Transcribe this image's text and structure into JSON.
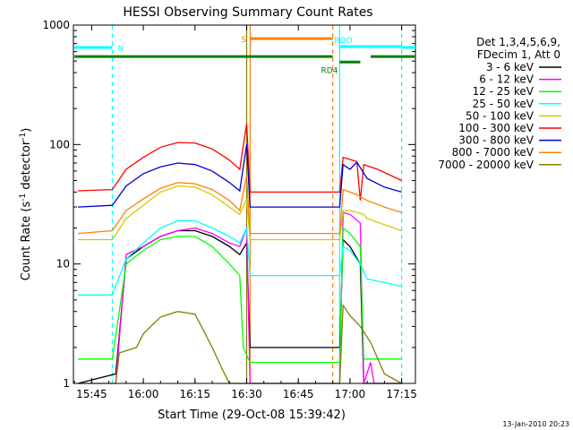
{
  "chart_data": {
    "type": "line",
    "title": "HESSI Observing Summary Count Rates",
    "xlabel": "Start Time (29-Oct-08 15:39:42)",
    "ylabel_main": "Count Rate (s",
    "ylabel_sup1": "-1",
    "ylabel_mid": " detector",
    "ylabel_sup2": "-1",
    "ylabel_end": ")",
    "y_scale": "log",
    "xlim": [
      "15:39:42",
      "17:19:00"
    ],
    "ylim": [
      1,
      1000
    ],
    "x_ticks": [
      {
        "label": "15:45",
        "t": "15:45"
      },
      {
        "label": "16:00",
        "t": "16:00"
      },
      {
        "label": "16:15",
        "t": "16:15"
      },
      {
        "label": "16:30",
        "t": "16:30"
      },
      {
        "label": "16:45",
        "t": "16:45"
      },
      {
        "label": "17:00",
        "t": "17:00"
      },
      {
        "label": "17:15",
        "t": "17:15"
      }
    ],
    "y_ticks": [
      {
        "label": "1",
        "v": 1
      },
      {
        "label": "10",
        "v": 10
      },
      {
        "label": "100",
        "v": 100
      },
      {
        "label": "1000",
        "v": 1000
      }
    ],
    "legend_header": [
      "Det 1,3,4,5,6,9,",
      "FDecim 1, Att 0"
    ],
    "legend_position": "right",
    "series": [
      {
        "name": "3 - 6 keV",
        "color": "#000000",
        "points": [
          [
            "15:41",
            1.0
          ],
          [
            "15:52",
            1.2
          ],
          [
            "15:55",
            11
          ],
          [
            "16:00",
            14
          ],
          [
            "16:05",
            17
          ],
          [
            "16:10",
            19
          ],
          [
            "16:15",
            19
          ],
          [
            "16:20",
            17
          ],
          [
            "16:25",
            14
          ],
          [
            "16:28",
            12
          ],
          [
            "16:30",
            15
          ],
          [
            "16:31",
            2.0
          ],
          [
            "16:57",
            2.0
          ],
          [
            "16:58",
            16
          ],
          [
            "17:00",
            14
          ],
          [
            "17:03",
            10
          ],
          [
            "17:04",
            1.0
          ],
          [
            "17:15",
            1.0
          ]
        ]
      },
      {
        "name": "6 - 12 keV",
        "color": "#ff00ff",
        "points": [
          [
            "15:52",
            1.0
          ],
          [
            "15:55",
            12
          ],
          [
            "16:00",
            14
          ],
          [
            "16:05",
            17
          ],
          [
            "16:10",
            19
          ],
          [
            "16:15",
            20
          ],
          [
            "16:20",
            18
          ],
          [
            "16:25",
            15
          ],
          [
            "16:28",
            14
          ],
          [
            "16:30",
            20
          ],
          [
            "16:31",
            1.0
          ],
          [
            "16:57",
            1.0
          ],
          [
            "16:58",
            27
          ],
          [
            "17:00",
            26
          ],
          [
            "17:03",
            22
          ],
          [
            "17:04",
            1.0
          ],
          [
            "17:06",
            1.5
          ],
          [
            "17:07",
            1.0
          ],
          [
            "17:15",
            1.0
          ]
        ]
      },
      {
        "name": "12 - 25 keV",
        "color": "#00ff00",
        "points": [
          [
            "15:41",
            1.6
          ],
          [
            "15:51",
            1.6
          ],
          [
            "15:55",
            10
          ],
          [
            "16:00",
            13
          ],
          [
            "16:05",
            16
          ],
          [
            "16:10",
            17
          ],
          [
            "16:15",
            17
          ],
          [
            "16:20",
            14
          ],
          [
            "16:25",
            10
          ],
          [
            "16:28",
            8
          ],
          [
            "16:29",
            2.0
          ],
          [
            "16:31",
            1.5
          ],
          [
            "16:57",
            1.5
          ],
          [
            "16:58",
            20
          ],
          [
            "17:00",
            18
          ],
          [
            "17:03",
            14
          ],
          [
            "17:04",
            1.6
          ],
          [
            "17:15",
            1.6
          ]
        ]
      },
      {
        "name": "25 - 50 keV",
        "color": "#00ffff",
        "points": [
          [
            "15:41",
            5.5
          ],
          [
            "15:51",
            5.5
          ],
          [
            "15:55",
            11
          ],
          [
            "16:00",
            15
          ],
          [
            "16:05",
            20
          ],
          [
            "16:10",
            23
          ],
          [
            "16:15",
            23
          ],
          [
            "16:20",
            20
          ],
          [
            "16:25",
            17
          ],
          [
            "16:28",
            15
          ],
          [
            "16:30",
            20
          ],
          [
            "16:31",
            8.0
          ],
          [
            "16:57",
            8.0
          ],
          [
            "16:58",
            14
          ],
          [
            "17:00",
            13
          ],
          [
            "17:03",
            10
          ],
          [
            "17:05",
            7.5
          ],
          [
            "17:15",
            6.5
          ]
        ]
      },
      {
        "name": "50 - 100 keV",
        "color": "#cccc00",
        "points": [
          [
            "15:41",
            16
          ],
          [
            "15:51",
            16
          ],
          [
            "15:55",
            24
          ],
          [
            "16:00",
            31
          ],
          [
            "16:05",
            40
          ],
          [
            "16:10",
            45
          ],
          [
            "16:15",
            44
          ],
          [
            "16:20",
            38
          ],
          [
            "16:25",
            30
          ],
          [
            "16:28",
            26
          ],
          [
            "16:30",
            35
          ],
          [
            "16:31",
            16
          ],
          [
            "16:57",
            16
          ],
          [
            "16:58",
            28
          ],
          [
            "17:00",
            28
          ],
          [
            "17:04",
            26
          ],
          [
            "17:05",
            24
          ],
          [
            "17:15",
            19
          ]
        ]
      },
      {
        "name": "100 - 300 keV",
        "color": "#ff0000",
        "points": [
          [
            "15:41",
            41
          ],
          [
            "15:51",
            42
          ],
          [
            "15:55",
            62
          ],
          [
            "16:00",
            78
          ],
          [
            "16:05",
            95
          ],
          [
            "16:10",
            104
          ],
          [
            "16:15",
            103
          ],
          [
            "16:20",
            92
          ],
          [
            "16:25",
            74
          ],
          [
            "16:28",
            62
          ],
          [
            "16:30",
            150
          ],
          [
            "16:31",
            40
          ],
          [
            "16:57",
            40
          ],
          [
            "16:58",
            78
          ],
          [
            "17:00",
            75
          ],
          [
            "17:02",
            72
          ],
          [
            "17:03",
            34
          ],
          [
            "17:04",
            68
          ],
          [
            "17:08",
            62
          ],
          [
            "17:15",
            50
          ]
        ]
      },
      {
        "name": "300 - 800 keV",
        "color": "#0000cc",
        "points": [
          [
            "15:41",
            30
          ],
          [
            "15:51",
            31
          ],
          [
            "15:55",
            45
          ],
          [
            "16:00",
            57
          ],
          [
            "16:05",
            65
          ],
          [
            "16:10",
            70
          ],
          [
            "16:15",
            68
          ],
          [
            "16:20",
            60
          ],
          [
            "16:25",
            48
          ],
          [
            "16:28",
            41
          ],
          [
            "16:30",
            100
          ],
          [
            "16:31",
            30
          ],
          [
            "16:57",
            30
          ],
          [
            "16:58",
            68
          ],
          [
            "17:00",
            62
          ],
          [
            "17:02",
            71
          ],
          [
            "17:05",
            52
          ],
          [
            "17:10",
            44
          ],
          [
            "17:15",
            40
          ]
        ]
      },
      {
        "name": "800 - 7000 keV",
        "color": "#ff8000",
        "points": [
          [
            "15:41",
            18
          ],
          [
            "15:51",
            19
          ],
          [
            "15:55",
            28
          ],
          [
            "16:00",
            35
          ],
          [
            "16:05",
            43
          ],
          [
            "16:10",
            48
          ],
          [
            "16:15",
            47
          ],
          [
            "16:20",
            42
          ],
          [
            "16:25",
            34
          ],
          [
            "16:28",
            28
          ],
          [
            "16:30",
            55
          ],
          [
            "16:31",
            18
          ],
          [
            "16:57",
            18
          ],
          [
            "16:58",
            42
          ],
          [
            "17:00",
            40
          ],
          [
            "17:02",
            38
          ],
          [
            "17:05",
            34
          ],
          [
            "17:10",
            30
          ],
          [
            "17:15",
            27
          ]
        ]
      },
      {
        "name": "7000 - 20000 keV",
        "color": "#808000",
        "points": [
          [
            "15:41",
            1.0
          ],
          [
            "15:52",
            1.0
          ],
          [
            "15:53",
            1.8
          ],
          [
            "15:58",
            2.0
          ],
          [
            "16:00",
            2.6
          ],
          [
            "16:05",
            3.6
          ],
          [
            "16:10",
            4.0
          ],
          [
            "16:15",
            3.8
          ],
          [
            "16:18",
            2.6
          ],
          [
            "16:20",
            2.0
          ],
          [
            "16:23",
            1.3
          ],
          [
            "16:25",
            1.0
          ],
          [
            "16:57",
            1.0
          ],
          [
            "16:58",
            4.5
          ],
          [
            "17:00",
            3.7
          ],
          [
            "17:03",
            3.0
          ],
          [
            "17:06",
            2.2
          ],
          [
            "17:10",
            1.2
          ],
          [
            "17:15",
            1.0
          ]
        ]
      }
    ],
    "verticals": [
      {
        "t": "15:51:00",
        "color": "#00ffff",
        "style": "dashed"
      },
      {
        "t": "16:30:00",
        "color": "#808000",
        "style": "solid"
      },
      {
        "t": "16:31:00",
        "color": "#ff8000",
        "style": "solid"
      },
      {
        "t": "16:55:00",
        "color": "#ff8000",
        "style": "dashed"
      },
      {
        "t": "16:57:00",
        "color": "#00ffff",
        "style": "solid"
      },
      {
        "t": "17:15:00",
        "color": "#00ffff",
        "style": "dashed"
      }
    ],
    "annotation_bars": [
      {
        "label": "N",
        "color": "#00ffff",
        "v": 650,
        "segments": [
          [
            "15:40",
            "15:51"
          ],
          [
            "17:15",
            "17:19"
          ]
        ]
      },
      {
        "label": "S",
        "color": "#ff8000",
        "v": 770,
        "segments": [
          [
            "16:31",
            "16:55"
          ]
        ]
      },
      {
        "label": "RDO",
        "color": "#00ffff",
        "v": 660,
        "segments": [
          [
            "16:57",
            "17:15"
          ]
        ]
      },
      {
        "label": "",
        "color": "#008000",
        "v": 545,
        "segments": [
          [
            "15:40",
            "16:55"
          ],
          [
            "17:06",
            "17:19"
          ]
        ]
      },
      {
        "label": "RD4",
        "color": "#008000",
        "v": 490,
        "segments": [
          [
            "16:57",
            "17:03"
          ]
        ]
      }
    ]
  },
  "footer_timestamp": "13-Jan-2010 20:23"
}
